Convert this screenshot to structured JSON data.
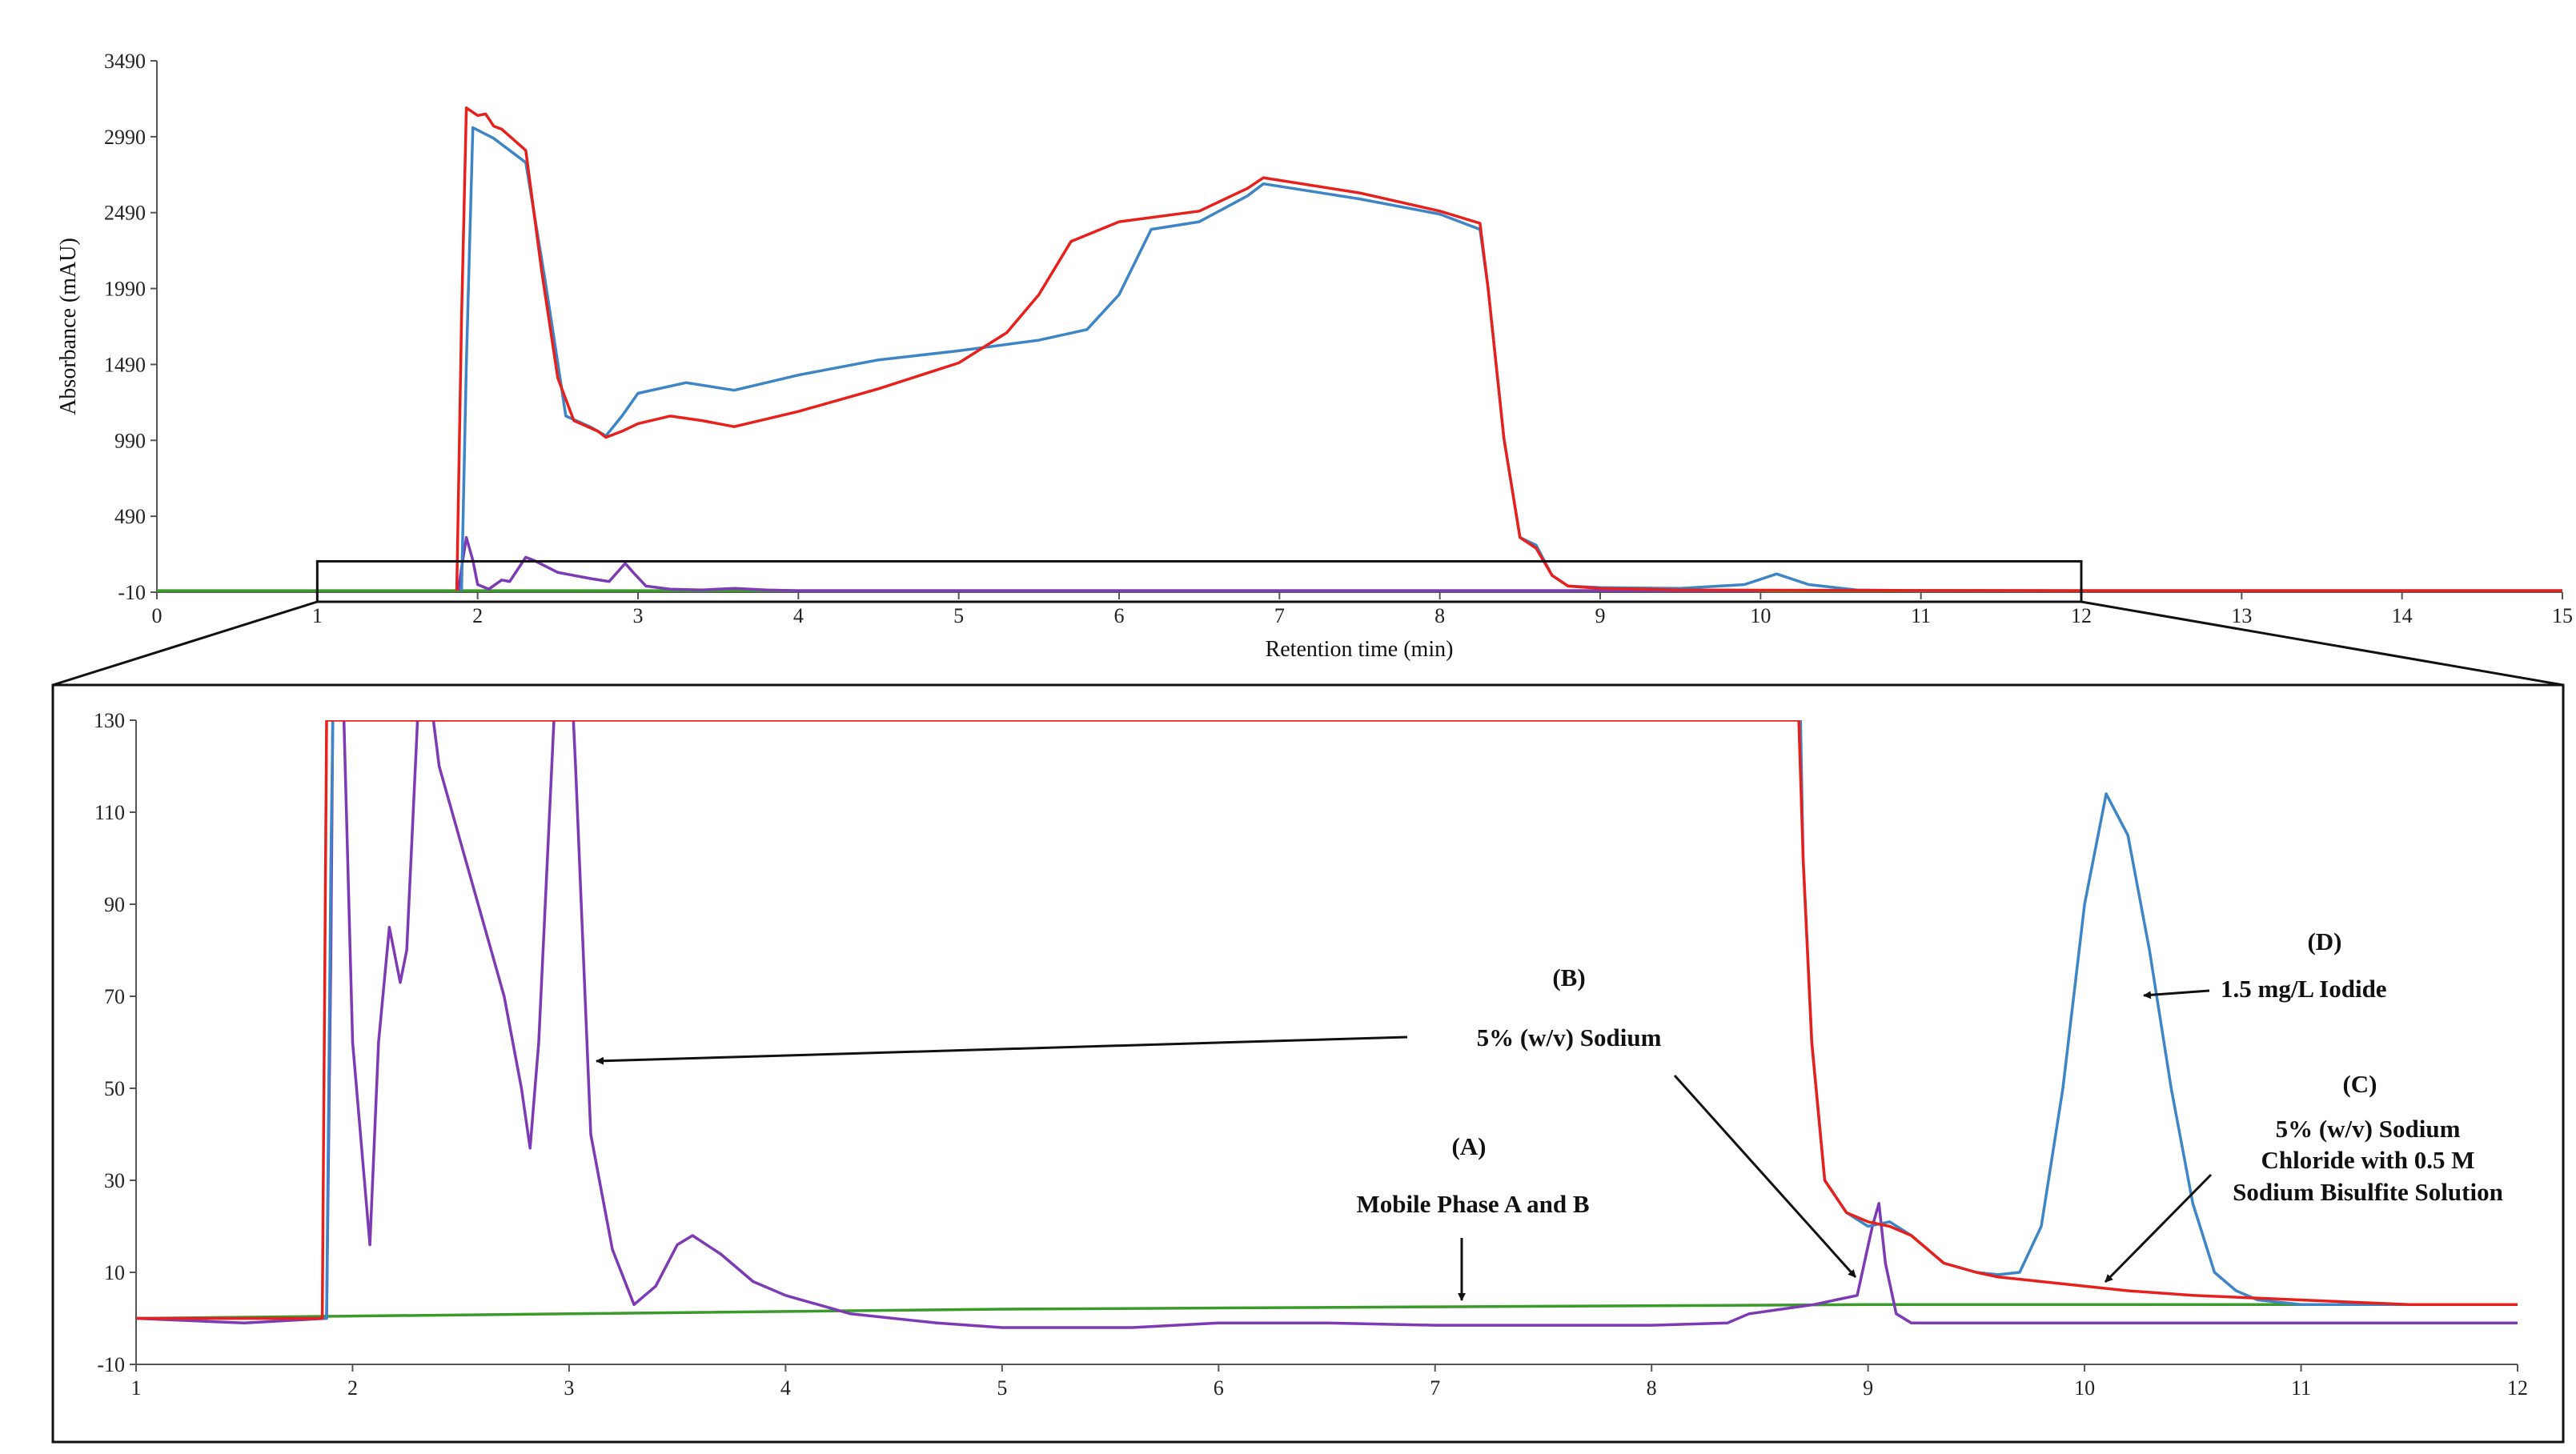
{
  "chart_data": [
    {
      "type": "line",
      "id": "top",
      "xlabel": "Retention time (min)",
      "ylabel": "Absorbance  (mAU)",
      "xlim": [
        0,
        15
      ],
      "ylim": [
        -10,
        3490
      ],
      "xticks": [
        0,
        1,
        2,
        3,
        4,
        5,
        6,
        7,
        8,
        9,
        10,
        11,
        12,
        13,
        14,
        15
      ],
      "yticks": [
        -10,
        490,
        990,
        1490,
        1990,
        2490,
        2990,
        3490
      ],
      "zoom_region": {
        "x": [
          1,
          12
        ],
        "y": [
          -10,
          130
        ]
      },
      "series": [
        {
          "name": "green",
          "color": "#3a9b2b",
          "points": [
            [
              0,
              0
            ],
            [
              15,
              0
            ]
          ]
        },
        {
          "name": "purple",
          "color": "#7d3ab5",
          "points": [
            [
              1.88,
              0
            ],
            [
              1.9,
              150
            ],
            [
              1.93,
              350
            ],
            [
              1.97,
              200
            ],
            [
              2.0,
              40
            ],
            [
              2.07,
              10
            ],
            [
              2.15,
              70
            ],
            [
              2.2,
              60
            ],
            [
              2.3,
              220
            ],
            [
              2.35,
              200
            ],
            [
              2.5,
              120
            ],
            [
              2.7,
              80
            ],
            [
              2.82,
              60
            ],
            [
              2.92,
              180
            ],
            [
              2.97,
              120
            ],
            [
              3.05,
              30
            ],
            [
              3.2,
              10
            ],
            [
              3.4,
              5
            ],
            [
              3.6,
              15
            ],
            [
              3.8,
              5
            ],
            [
              4.0,
              0
            ],
            [
              10,
              0
            ]
          ]
        },
        {
          "name": "blue",
          "color": "#3d85c6",
          "points": [
            [
              1.9,
              0
            ],
            [
              1.93,
              1500
            ],
            [
              1.97,
              3050
            ],
            [
              2.1,
              2980
            ],
            [
              2.3,
              2820
            ],
            [
              2.42,
              2050
            ],
            [
              2.5,
              1500
            ],
            [
              2.55,
              1150
            ],
            [
              2.7,
              1080
            ],
            [
              2.8,
              1020
            ],
            [
              2.9,
              1150
            ],
            [
              3.0,
              1300
            ],
            [
              3.3,
              1370
            ],
            [
              3.6,
              1320
            ],
            [
              4.0,
              1420
            ],
            [
              4.5,
              1520
            ],
            [
              5.0,
              1580
            ],
            [
              5.5,
              1650
            ],
            [
              5.8,
              1720
            ],
            [
              6.0,
              1950
            ],
            [
              6.2,
              2380
            ],
            [
              6.5,
              2430
            ],
            [
              6.8,
              2600
            ],
            [
              6.9,
              2680
            ],
            [
              7.5,
              2580
            ],
            [
              8.0,
              2480
            ],
            [
              8.25,
              2380
            ],
            [
              8.3,
              2000
            ],
            [
              8.4,
              1000
            ],
            [
              8.5,
              350
            ],
            [
              8.6,
              300
            ],
            [
              8.7,
              100
            ],
            [
              8.8,
              30
            ],
            [
              9.0,
              20
            ],
            [
              9.5,
              15
            ],
            [
              9.9,
              40
            ],
            [
              10.1,
              110
            ],
            [
              10.3,
              40
            ],
            [
              10.6,
              5
            ],
            [
              11,
              0
            ],
            [
              15,
              0
            ]
          ]
        },
        {
          "name": "red",
          "color": "#e8201c",
          "points": [
            [
              1.87,
              0
            ],
            [
              1.9,
              1800
            ],
            [
              1.93,
              3180
            ],
            [
              2.0,
              3130
            ],
            [
              2.05,
              3140
            ],
            [
              2.1,
              3060
            ],
            [
              2.15,
              3040
            ],
            [
              2.3,
              2900
            ],
            [
              2.4,
              2100
            ],
            [
              2.5,
              1400
            ],
            [
              2.6,
              1120
            ],
            [
              2.75,
              1050
            ],
            [
              2.8,
              1010
            ],
            [
              2.9,
              1050
            ],
            [
              3.0,
              1100
            ],
            [
              3.2,
              1150
            ],
            [
              3.4,
              1120
            ],
            [
              3.6,
              1080
            ],
            [
              4.0,
              1180
            ],
            [
              4.5,
              1330
            ],
            [
              5.0,
              1500
            ],
            [
              5.3,
              1700
            ],
            [
              5.5,
              1950
            ],
            [
              5.7,
              2300
            ],
            [
              6.0,
              2430
            ],
            [
              6.5,
              2500
            ],
            [
              6.8,
              2650
            ],
            [
              6.9,
              2720
            ],
            [
              7.5,
              2620
            ],
            [
              8.0,
              2500
            ],
            [
              8.25,
              2420
            ],
            [
              8.3,
              2000
            ],
            [
              8.4,
              1000
            ],
            [
              8.5,
              350
            ],
            [
              8.6,
              280
            ],
            [
              8.7,
              100
            ],
            [
              8.8,
              30
            ],
            [
              9.0,
              15
            ],
            [
              9.5,
              5
            ],
            [
              10,
              3
            ],
            [
              11,
              1
            ],
            [
              12,
              0
            ],
            [
              15,
              0
            ]
          ]
        }
      ]
    },
    {
      "type": "line",
      "id": "bottom",
      "xlim": [
        1,
        12
      ],
      "ylim": [
        -10,
        130
      ],
      "xticks": [
        1,
        2,
        3,
        4,
        5,
        6,
        7,
        8,
        9,
        10,
        11,
        12
      ],
      "yticks": [
        -10,
        10,
        30,
        50,
        70,
        90,
        110,
        130
      ],
      "series": [
        {
          "name": "green",
          "color": "#3a9b2b",
          "points": [
            [
              1,
              0
            ],
            [
              3,
              1
            ],
            [
              5,
              2
            ],
            [
              7,
              2.5
            ],
            [
              9,
              3
            ],
            [
              12,
              3
            ]
          ]
        },
        {
          "name": "purple",
          "color": "#7d3ab5",
          "points": [
            [
              1,
              0
            ],
            [
              1.5,
              -1
            ],
            [
              1.88,
              0
            ],
            [
              1.9,
              80
            ],
            [
              1.92,
              200
            ],
            [
              2.0,
              60
            ],
            [
              2.08,
              16
            ],
            [
              2.12,
              60
            ],
            [
              2.17,
              85
            ],
            [
              2.22,
              73
            ],
            [
              2.25,
              80
            ],
            [
              2.32,
              150
            ],
            [
              2.4,
              120
            ],
            [
              2.55,
              95
            ],
            [
              2.7,
              70
            ],
            [
              2.78,
              50
            ],
            [
              2.82,
              37
            ],
            [
              2.86,
              60
            ],
            [
              2.93,
              130
            ],
            [
              2.97,
              180
            ],
            [
              3.03,
              120
            ],
            [
              3.1,
              40
            ],
            [
              3.2,
              15
            ],
            [
              3.3,
              3
            ],
            [
              3.4,
              7
            ],
            [
              3.5,
              16
            ],
            [
              3.57,
              18
            ],
            [
              3.7,
              14
            ],
            [
              3.85,
              8
            ],
            [
              4.0,
              5
            ],
            [
              4.3,
              1
            ],
            [
              4.7,
              -1
            ],
            [
              5.0,
              -2
            ],
            [
              5.6,
              -2
            ],
            [
              6.0,
              -1
            ],
            [
              6.5,
              -1
            ],
            [
              7.0,
              -1.5
            ],
            [
              7.5,
              -1.5
            ],
            [
              8.0,
              -1.5
            ],
            [
              8.35,
              -1
            ],
            [
              8.45,
              1
            ],
            [
              8.6,
              2
            ],
            [
              8.75,
              3
            ],
            [
              8.85,
              4
            ],
            [
              8.95,
              5
            ],
            [
              9.02,
              20
            ],
            [
              9.05,
              25
            ],
            [
              9.08,
              12
            ],
            [
              9.13,
              1
            ],
            [
              9.2,
              -1
            ],
            [
              10,
              -1
            ],
            [
              11,
              -1
            ],
            [
              12,
              -1
            ]
          ]
        },
        {
          "name": "blue",
          "color": "#3d85c6",
          "points": [
            [
              1,
              0
            ],
            [
              1.5,
              0
            ],
            [
              1.88,
              0
            ],
            [
              1.9,
              100
            ],
            [
              1.93,
              200
            ],
            [
              8.68,
              150
            ],
            [
              8.7,
              100
            ],
            [
              8.74,
              60
            ],
            [
              8.8,
              30
            ],
            [
              8.9,
              23
            ],
            [
              9.0,
              20
            ],
            [
              9.1,
              21
            ],
            [
              9.2,
              18
            ],
            [
              9.35,
              12
            ],
            [
              9.5,
              10
            ],
            [
              9.6,
              9.5
            ],
            [
              9.7,
              10
            ],
            [
              9.8,
              20
            ],
            [
              9.9,
              50
            ],
            [
              10.0,
              90
            ],
            [
              10.1,
              114
            ],
            [
              10.2,
              105
            ],
            [
              10.3,
              80
            ],
            [
              10.4,
              50
            ],
            [
              10.5,
              25
            ],
            [
              10.6,
              10
            ],
            [
              10.7,
              6
            ],
            [
              10.8,
              4
            ],
            [
              11.0,
              3
            ],
            [
              12.0,
              3
            ]
          ]
        },
        {
          "name": "red",
          "color": "#e8201c",
          "points": [
            [
              1,
              0
            ],
            [
              1.5,
              0
            ],
            [
              1.86,
              0
            ],
            [
              1.88,
              130
            ],
            [
              8.68,
              130
            ],
            [
              8.7,
              100
            ],
            [
              8.74,
              60
            ],
            [
              8.8,
              30
            ],
            [
              8.9,
              23
            ],
            [
              9.0,
              21
            ],
            [
              9.1,
              20
            ],
            [
              9.2,
              18
            ],
            [
              9.35,
              12
            ],
            [
              9.5,
              10
            ],
            [
              9.6,
              9
            ],
            [
              9.8,
              8
            ],
            [
              10.0,
              7
            ],
            [
              10.2,
              6
            ],
            [
              10.5,
              5
            ],
            [
              11.0,
              4
            ],
            [
              11.5,
              3
            ],
            [
              12.0,
              3
            ]
          ]
        }
      ]
    }
  ],
  "annotations": {
    "b_label": "(B)",
    "b_text": "5% (w/v) Sodium",
    "a_label": "(A)",
    "a_text": "Mobile Phase A and B",
    "d_label": "(D)",
    "d_text": "1.5 mg/L Iodide",
    "c_label": "(C)",
    "c_line1": "5% (w/v) Sodium",
    "c_line2": "Chloride  with 0.5 M",
    "c_line3": "Sodium Bisulfite Solution"
  }
}
